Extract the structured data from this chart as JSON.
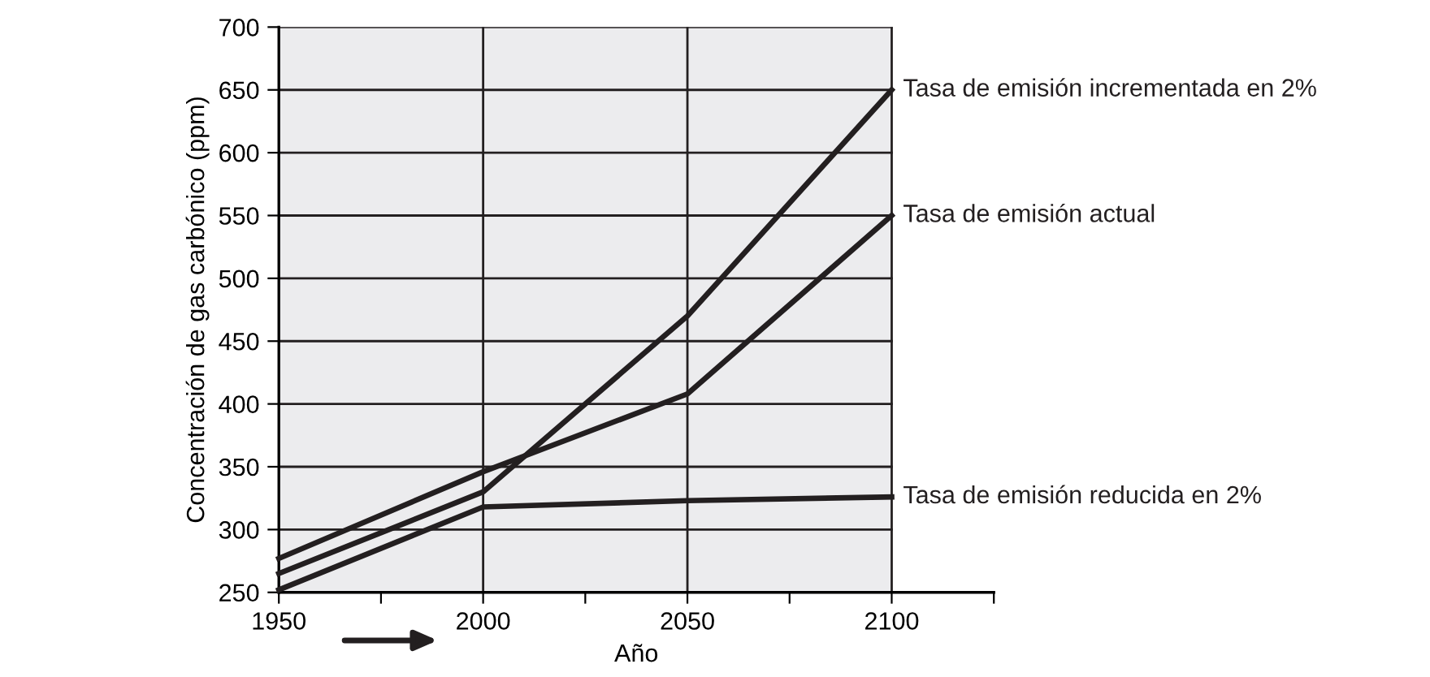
{
  "chart_data": {
    "type": "line",
    "xlabel": "Año",
    "ylabel": "Concentración de gas carbónico (ppm)",
    "x": [
      1950,
      2000,
      2050,
      2100
    ],
    "series": [
      {
        "name": "Tasa de emisión incrementada en 2%",
        "color": "#231f20",
        "values": [
          265,
          330,
          470,
          650
        ]
      },
      {
        "name": "Tasa de emisión actual",
        "color": "#231f20",
        "values": [
          277,
          346,
          408,
          550
        ]
      },
      {
        "name": "Tasa de emisión reducida en 2%",
        "color": "#231f20",
        "values": [
          252,
          318,
          323,
          326
        ]
      }
    ],
    "xlim": [
      1950,
      2125
    ],
    "xticks": [
      1950,
      {
        "value": 1975,
        "label": null
      },
      2000,
      {
        "value": 2025,
        "label": null
      },
      2050,
      {
        "value": 2075,
        "label": null
      },
      2100,
      {
        "value": 2125,
        "label": null
      }
    ],
    "ylim": [
      250,
      700
    ],
    "yticks": [
      250,
      300,
      350,
      400,
      450,
      500,
      550,
      600,
      650,
      700
    ],
    "bands": [
      {
        "axis": "x",
        "from": 1950,
        "to": 2100,
        "color": "#ececee"
      }
    ],
    "grid": true,
    "legend": "right",
    "marker": "none",
    "line_style": "solid"
  }
}
